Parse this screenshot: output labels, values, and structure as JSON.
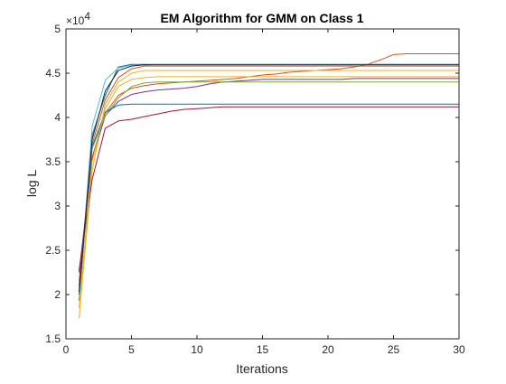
{
  "chart_data": {
    "type": "line",
    "title": "EM Algorithm for GMM on Class 1",
    "xlabel": "Iterations",
    "ylabel": "log L",
    "xlim": [
      0,
      30
    ],
    "ylim": [
      15000,
      50000
    ],
    "xticks": [
      0,
      5,
      10,
      15,
      20,
      25,
      30
    ],
    "xtick_labels": [
      "0",
      "5",
      "10",
      "15",
      "20",
      "25",
      "30"
    ],
    "yticks": [
      15000,
      20000,
      25000,
      30000,
      35000,
      40000,
      45000,
      50000
    ],
    "ytick_labels": [
      "1.5",
      "2",
      "2.5",
      "3",
      "3.5",
      "4",
      "4.5",
      "5"
    ],
    "y_exponent_base": "×10",
    "y_exponent_power": "4",
    "grid": false,
    "legend": "none",
    "x": [
      1,
      2,
      3,
      4,
      5,
      6,
      7,
      8,
      9,
      10,
      11,
      12,
      13,
      14,
      15,
      16,
      17,
      18,
      19,
      20,
      21,
      22,
      23,
      24,
      25,
      26,
      27,
      28,
      29,
      30
    ],
    "series": [
      {
        "color": "#0072BD",
        "values": [
          19300,
          38000,
          42500,
          45700,
          46000,
          46000,
          46000,
          46000,
          46000,
          46000,
          46000,
          46000,
          46000,
          46000,
          46000,
          46000,
          46000,
          46000,
          46000,
          46000,
          46000,
          46000,
          46000,
          46000,
          46000,
          46000,
          46000,
          46000,
          46000,
          46000
        ]
      },
      {
        "color": "#D95319",
        "values": [
          21500,
          35500,
          40500,
          42500,
          43300,
          43600,
          43800,
          43900,
          44000,
          44100,
          44200,
          44300,
          44400,
          44600,
          44800,
          44900,
          45100,
          45200,
          45300,
          45400,
          45500,
          45700,
          46000,
          46500,
          47100,
          47200,
          47200,
          47200,
          47200,
          47200
        ]
      },
      {
        "color": "#EDB120",
        "values": [
          17300,
          34000,
          41500,
          44000,
          45000,
          45300,
          45300,
          45300,
          45300,
          45300,
          45300,
          45300,
          45300,
          45300,
          45300,
          45300,
          45300,
          45300,
          45300,
          45300,
          45300,
          45300,
          45300,
          45300,
          45300,
          45300,
          45300,
          45300,
          45300,
          45300
        ]
      },
      {
        "color": "#7E2F8E",
        "values": [
          22500,
          35300,
          40200,
          41800,
          42600,
          42900,
          43100,
          43200,
          43300,
          43500,
          43800,
          44000,
          44100,
          44200,
          44300,
          44300,
          44300,
          44300,
          44300,
          44300,
          44300,
          44400,
          44400,
          44400,
          44400,
          44400,
          44400,
          44400,
          44400,
          44400
        ]
      },
      {
        "color": "#77AC30",
        "values": [
          20700,
          36500,
          40200,
          42200,
          43500,
          43900,
          44000,
          44000,
          44000,
          44000,
          44000,
          44000,
          44000,
          44000,
          44000,
          44000,
          44000,
          44000,
          44000,
          44000,
          44000,
          44000,
          44000,
          44000,
          44000,
          44000,
          44000,
          44000,
          44000,
          44000
        ]
      },
      {
        "color": "#4DBEEE",
        "values": [
          19600,
          39000,
          44200,
          45600,
          45900,
          45900,
          46000,
          46000,
          46000,
          46000,
          46000,
          46000,
          46000,
          46000,
          46000,
          46000,
          46000,
          46000,
          46000,
          46000,
          46000,
          46000,
          46000,
          46000,
          46000,
          46000,
          46000,
          46000,
          46000,
          46000
        ]
      },
      {
        "color": "#A2142F",
        "values": [
          22700,
          33000,
          38800,
          39600,
          39800,
          40100,
          40400,
          40700,
          40900,
          41000,
          41100,
          41200,
          41200,
          41200,
          41200,
          41200,
          41200,
          41200,
          41200,
          41200,
          41200,
          41200,
          41200,
          41200,
          41200,
          41200,
          41200,
          41200,
          41200,
          41200
        ]
      },
      {
        "color": "#0072BD",
        "values": [
          20000,
          36700,
          40600,
          41400,
          41500,
          41500,
          41500,
          41500,
          41500,
          41500,
          41500,
          41500,
          41500,
          41500,
          41500,
          41500,
          41500,
          41500,
          41500,
          41500,
          41500,
          41500,
          41500,
          41500,
          41500,
          41500,
          41500,
          41500,
          41500,
          41500
        ]
      },
      {
        "color": "#D95319",
        "values": [
          21000,
          37000,
          42000,
          44500,
          45500,
          45800,
          45800,
          45800,
          45800,
          45800,
          45800,
          45800,
          45800,
          45800,
          45800,
          45800,
          45800,
          45800,
          45800,
          45800,
          45800,
          45800,
          45800,
          45800,
          45800,
          45800,
          45800,
          45800,
          45800,
          45800
        ]
      },
      {
        "color": "#EDB120",
        "values": [
          18500,
          35000,
          41000,
          43500,
          44300,
          44500,
          44600,
          44600,
          44600,
          44600,
          44600,
          44600,
          44600,
          44600,
          44600,
          44600,
          44600,
          44600,
          44600,
          44600,
          44600,
          44600,
          44600,
          44600,
          44600,
          44600,
          44600,
          44600,
          44600,
          44600
        ]
      },
      {
        "color": "#262626",
        "values": [
          20300,
          37500,
          43000,
          45300,
          45800,
          45950,
          45950,
          45950,
          45950,
          45950,
          45950,
          45950,
          45950,
          45950,
          45950,
          45950,
          45950,
          45950,
          45950,
          45950,
          45950,
          45950,
          45950,
          45950,
          45950,
          45950,
          45950,
          45950,
          45950,
          45950
        ]
      }
    ]
  }
}
